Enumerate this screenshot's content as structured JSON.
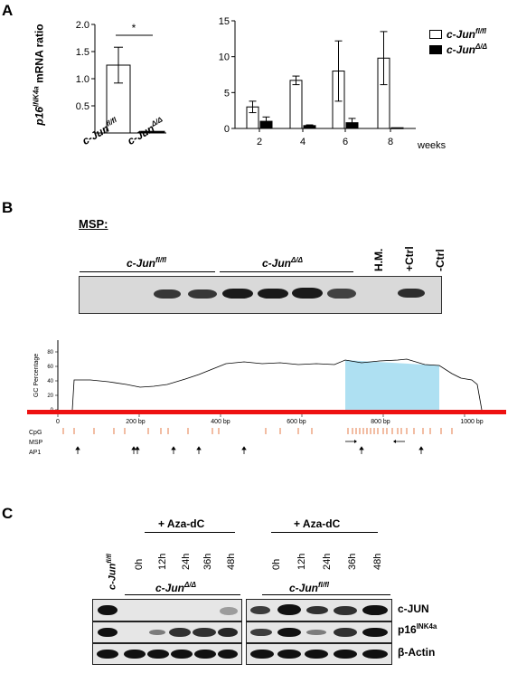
{
  "panels": {
    "a": "A",
    "b": "B",
    "c": "C"
  },
  "panelA": {
    "left": {
      "ylabel_gene": "p16",
      "ylabel_sup": "INK4a",
      "ylabel_rest": " mRNA ratio",
      "yticks": [
        "2.0",
        "1.5",
        "1.0",
        "0.5"
      ],
      "sig": "*",
      "xlabels": [
        {
          "base": "c-Jun",
          "sup": "fl/fl"
        },
        {
          "base": "c-Jun",
          "sup": "Δ/Δ"
        }
      ]
    },
    "right": {
      "yticks": [
        "15",
        "10",
        "5",
        "0"
      ],
      "xticks": [
        "2",
        "4",
        "6",
        "8"
      ],
      "xunit": "weeks",
      "legend": [
        {
          "base": "c-Jun",
          "sup": "fl/fl",
          "color": "#ffffff"
        },
        {
          "base": "c-Jun",
          "sup": "Δ/Δ",
          "color": "#000000"
        }
      ]
    }
  },
  "chart_data": [
    {
      "type": "bar",
      "categories": [
        "c-Jun fl/fl",
        "c-Jun Δ/Δ"
      ],
      "values": [
        1.25,
        0.03
      ],
      "errors": [
        0.33,
        0.01
      ],
      "ylabel": "p16 INK4a mRNA ratio",
      "ylim": [
        0,
        2.0
      ]
    },
    {
      "type": "bar",
      "categories": [
        "2",
        "4",
        "6",
        "8"
      ],
      "xlabel": "weeks",
      "ylim": [
        0,
        15
      ],
      "series": [
        {
          "name": "c-Jun fl/fl",
          "values": [
            3.0,
            6.7,
            8.0,
            9.8
          ],
          "errors": [
            0.8,
            0.6,
            4.2,
            3.7
          ]
        },
        {
          "name": "c-Jun Δ/Δ",
          "values": [
            1.0,
            0.4,
            0.8,
            0.1
          ],
          "errors": [
            0.6,
            0.1,
            0.6,
            0.05
          ]
        }
      ]
    },
    {
      "type": "line",
      "ylabel": "GC Percentage",
      "xticks": [
        "0",
        "200 bp",
        "400 bp",
        "600 bp",
        "800 bp",
        "1000 bp"
      ],
      "yticks": [
        "0",
        "20",
        "40",
        "60",
        "80"
      ],
      "tracks": [
        "CpG",
        "MSP",
        "AP1"
      ]
    }
  ],
  "panelB": {
    "msp_label": "MSP:",
    "groups": [
      {
        "base": "c-Jun",
        "sup": "fl/fl"
      },
      {
        "base": "c-Jun",
        "sup": "Δ/Δ"
      }
    ],
    "controls": [
      "H.M.",
      "+Ctrl",
      "-Ctrl"
    ]
  },
  "panelC": {
    "aza": "+ Aza-dC",
    "times": [
      "0h",
      "12h",
      "24h",
      "36h",
      "48h"
    ],
    "side_label": {
      "base": "c-Jun",
      "sup": "fl/fl"
    },
    "groups": [
      {
        "base": "c-Jun",
        "sup": "Δ/Δ"
      },
      {
        "base": "c-Jun",
        "sup": "fl/fl"
      }
    ],
    "rows": [
      {
        "base": "c-JUN",
        "sup": ""
      },
      {
        "base": "p16",
        "sup": "INK4a"
      },
      {
        "base": "β-Actin",
        "sup": ""
      }
    ]
  }
}
